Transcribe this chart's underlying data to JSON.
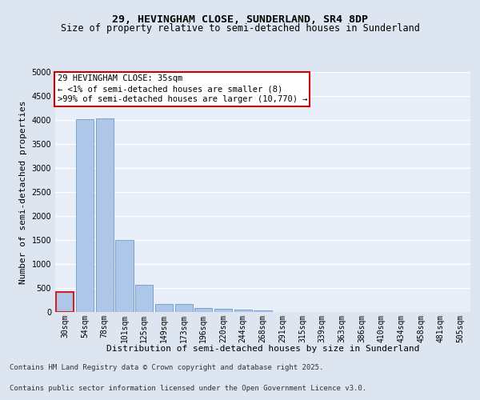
{
  "title1": "29, HEVINGHAM CLOSE, SUNDERLAND, SR4 8DP",
  "title2": "Size of property relative to semi-detached houses in Sunderland",
  "xlabel": "Distribution of semi-detached houses by size in Sunderland",
  "ylabel": "Number of semi-detached properties",
  "categories": [
    "30sqm",
    "54sqm",
    "78sqm",
    "101sqm",
    "125sqm",
    "149sqm",
    "173sqm",
    "196sqm",
    "220sqm",
    "244sqm",
    "268sqm",
    "291sqm",
    "315sqm",
    "339sqm",
    "363sqm",
    "386sqm",
    "410sqm",
    "434sqm",
    "458sqm",
    "481sqm",
    "505sqm"
  ],
  "values": [
    420,
    4020,
    4040,
    1500,
    560,
    175,
    175,
    80,
    65,
    55,
    35,
    0,
    0,
    0,
    0,
    0,
    0,
    0,
    0,
    0,
    0
  ],
  "bar_color": "#aec6e8",
  "bar_edge_color": "#5a8fc0",
  "highlight_bar_index": 0,
  "highlight_color": "#cc2222",
  "ylim": [
    0,
    5000
  ],
  "yticks": [
    0,
    500,
    1000,
    1500,
    2000,
    2500,
    3000,
    3500,
    4000,
    4500,
    5000
  ],
  "annotation_title": "29 HEVINGHAM CLOSE: 35sqm",
  "annotation_line1": "← <1% of semi-detached houses are smaller (8)",
  "annotation_line2": ">99% of semi-detached houses are larger (10,770) →",
  "annotation_box_color": "#ffffff",
  "annotation_box_edge": "#cc0000",
  "footer1": "Contains HM Land Registry data © Crown copyright and database right 2025.",
  "footer2": "Contains public sector information licensed under the Open Government Licence v3.0.",
  "bg_color": "#dde5f0",
  "plot_bg_color": "#e8eef8",
  "grid_color": "#ffffff",
  "title_fontsize": 9.5,
  "subtitle_fontsize": 8.5,
  "axis_label_fontsize": 8,
  "tick_fontsize": 7,
  "footer_fontsize": 6.5,
  "annotation_fontsize": 7.5
}
